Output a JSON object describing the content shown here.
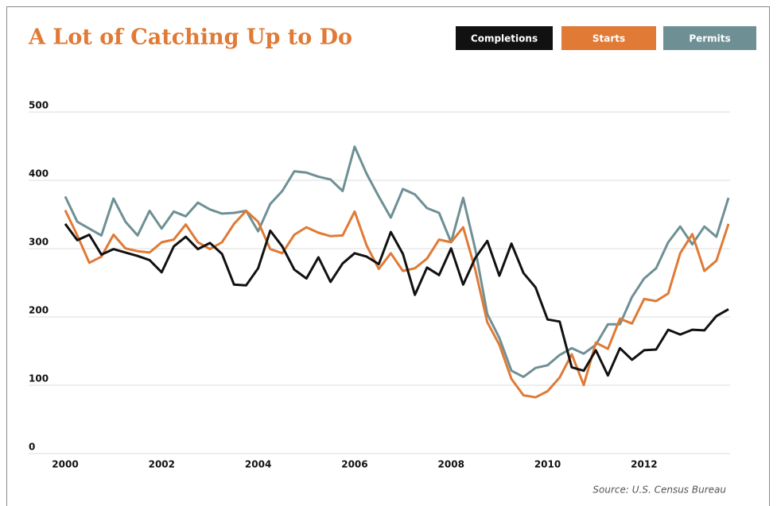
{
  "chart_data": {
    "type": "line",
    "title": "A Lot of Catching Up to Do",
    "source": "Source: U.S. Census Bureau",
    "x": [
      2000,
      2000.25,
      2000.5,
      2000.75,
      2001,
      2001.25,
      2001.5,
      2001.75,
      2002,
      2002.25,
      2002.5,
      2002.75,
      2003,
      2003.25,
      2003.5,
      2003.75,
      2004,
      2004.25,
      2004.5,
      2004.75,
      2005,
      2005.25,
      2005.5,
      2005.75,
      2006,
      2006.25,
      2006.5,
      2006.75,
      2007,
      2007.25,
      2007.5,
      2007.75,
      2008,
      2008.25,
      2008.5,
      2008.75,
      2009,
      2009.25,
      2009.5,
      2009.75,
      2010,
      2010.25,
      2010.5,
      2010.75,
      2011,
      2011.25,
      2011.5,
      2011.75,
      2012,
      2012.25,
      2012.5,
      2012.75,
      2013,
      2013.25,
      2013.5,
      2013.75
    ],
    "series": [
      {
        "name": "Completions",
        "color": "#111111",
        "values": [
          327,
          303,
          311,
          282,
          290,
          285,
          280,
          274,
          256,
          294,
          308,
          290,
          299,
          283,
          238,
          237,
          262,
          317,
          294,
          260,
          247,
          278,
          242,
          269,
          284,
          279,
          268,
          315,
          283,
          223,
          263,
          252,
          291,
          238,
          277,
          302,
          251,
          298,
          255,
          234,
          187,
          184,
          117,
          112,
          142,
          105,
          145,
          128,
          142,
          143,
          172,
          165,
          172,
          171,
          192,
          202
        ]
      },
      {
        "name": "Starts",
        "color": "#e07a35",
        "values": [
          347,
          310,
          270,
          279,
          311,
          291,
          287,
          285,
          300,
          304,
          326,
          300,
          290,
          300,
          327,
          346,
          330,
          290,
          284,
          311,
          322,
          314,
          309,
          310,
          345,
          295,
          261,
          284,
          258,
          262,
          276,
          304,
          300,
          322,
          260,
          183,
          150,
          100,
          76,
          73,
          82,
          102,
          136,
          91,
          153,
          144,
          188,
          181,
          217,
          214,
          225,
          284,
          312,
          258,
          273,
          327
        ]
      },
      {
        "name": "Permits",
        "color": "#6e9095",
        "values": [
          367,
          330,
          320,
          310,
          364,
          330,
          310,
          346,
          320,
          345,
          338,
          358,
          348,
          342,
          343,
          346,
          316,
          356,
          375,
          404,
          402,
          396,
          392,
          375,
          440,
          400,
          367,
          336,
          378,
          370,
          350,
          343,
          300,
          365,
          290,
          195,
          160,
          112,
          103,
          116,
          120,
          135,
          145,
          137,
          150,
          180,
          180,
          220,
          247,
          262,
          300,
          323,
          297,
          323,
          308,
          365
        ]
      }
    ],
    "xlim": [
      2000,
      2013.75
    ],
    "xticks": [
      2000,
      2002,
      2004,
      2006,
      2008,
      2010,
      2012
    ],
    "ylim": [
      0,
      500
    ],
    "yticks": [
      0,
      100,
      200,
      300,
      400,
      500
    ],
    "grid": true
  }
}
